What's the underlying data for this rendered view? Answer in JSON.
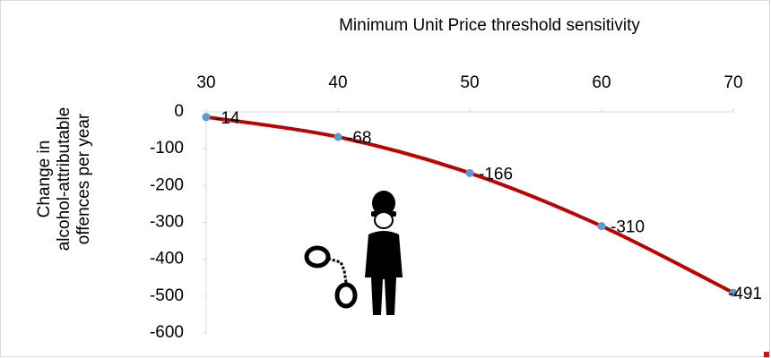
{
  "chart_data": {
    "type": "line",
    "x_label": "Minimum Unit Price threshold sensitivity",
    "y_label": [
      "Change in",
      "alcohol-attributable",
      "offences per year"
    ],
    "x": [
      30,
      40,
      50,
      60,
      70
    ],
    "series": [
      {
        "color": "#c00000",
        "marker_color": "#5b9bd5",
        "values": [
          -14,
          -68,
          -166,
          -310,
          -491
        ]
      }
    ],
    "xlim": [
      30,
      70
    ],
    "xticks": [
      30,
      40,
      50,
      60,
      70
    ],
    "ylim": [
      -600,
      0
    ],
    "yticks": [
      0,
      -100,
      -200,
      -300,
      -400,
      -500,
      -600
    ],
    "data_labels": true,
    "smooth": true
  }
}
